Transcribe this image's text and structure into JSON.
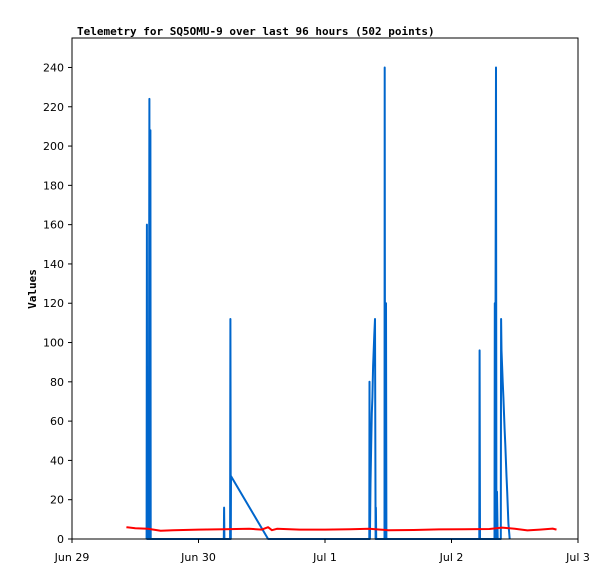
{
  "chart_data": {
    "type": "line",
    "title": "Telemetry for SQ5OMU-9 over last 96 hours (502 points)",
    "xlabel": "",
    "ylabel": "Values",
    "ylim": [
      0,
      255
    ],
    "xlim": [
      0,
      4
    ],
    "grid": false,
    "legend": "none",
    "x_ticks": [
      {
        "x": 0,
        "label": "Jun 29"
      },
      {
        "x": 1,
        "label": "Jun 30"
      },
      {
        "x": 2,
        "label": "Jul 1"
      },
      {
        "x": 3,
        "label": "Jul 2"
      },
      {
        "x": 4,
        "label": "Jul 3"
      }
    ],
    "y_ticks": [
      0,
      20,
      40,
      60,
      80,
      100,
      120,
      140,
      160,
      180,
      200,
      220,
      240
    ],
    "x_unit": "days since Jun 29 00:00",
    "series": [
      {
        "color": "#0066cc",
        "points": [
          [
            0.59,
            0
          ],
          [
            0.592,
            160
          ],
          [
            0.594,
            0
          ],
          [
            0.598,
            48
          ],
          [
            0.6,
            0
          ],
          [
            0.605,
            16
          ],
          [
            0.607,
            0
          ],
          [
            0.612,
            224
          ],
          [
            0.614,
            0
          ],
          [
            0.62,
            208
          ],
          [
            0.622,
            0
          ],
          [
            1.2,
            0
          ],
          [
            1.202,
            16
          ],
          [
            1.205,
            0
          ],
          [
            1.25,
            0
          ],
          [
            1.252,
            112
          ],
          [
            1.255,
            0
          ],
          [
            1.257,
            32
          ],
          [
            1.55,
            0
          ],
          [
            2.35,
            0
          ],
          [
            2.352,
            80
          ],
          [
            2.355,
            0
          ],
          [
            2.36,
            28
          ],
          [
            2.365,
            48
          ],
          [
            2.37,
            64
          ],
          [
            2.375,
            72
          ],
          [
            2.38,
            88
          ],
          [
            2.385,
            96
          ],
          [
            2.39,
            104
          ],
          [
            2.395,
            112
          ],
          [
            2.4,
            0
          ],
          [
            2.402,
            16
          ],
          [
            2.405,
            0
          ],
          [
            2.47,
            0
          ],
          [
            2.472,
            240
          ],
          [
            2.475,
            0
          ],
          [
            2.482,
            120
          ],
          [
            2.485,
            0
          ],
          [
            3.22,
            0
          ],
          [
            3.222,
            96
          ],
          [
            3.225,
            0
          ],
          [
            3.34,
            0
          ],
          [
            3.342,
            120
          ],
          [
            3.345,
            0
          ],
          [
            3.352,
            240
          ],
          [
            3.355,
            0
          ],
          [
            3.36,
            24
          ],
          [
            3.365,
            0
          ],
          [
            3.39,
            0
          ],
          [
            3.392,
            112
          ],
          [
            3.395,
            96
          ],
          [
            3.4,
            88
          ],
          [
            3.405,
            80
          ],
          [
            3.41,
            72
          ],
          [
            3.415,
            64
          ],
          [
            3.42,
            56
          ],
          [
            3.425,
            48
          ],
          [
            3.43,
            40
          ],
          [
            3.435,
            32
          ],
          [
            3.44,
            24
          ],
          [
            3.445,
            16
          ],
          [
            3.45,
            8
          ],
          [
            3.46,
            0
          ]
        ]
      },
      {
        "color": "#ff0000",
        "points": [
          [
            0.43,
            6
          ],
          [
            0.5,
            5.5
          ],
          [
            0.6,
            5.2
          ],
          [
            0.7,
            4.2
          ],
          [
            0.8,
            4.5
          ],
          [
            1.0,
            4.8
          ],
          [
            1.2,
            5.0
          ],
          [
            1.4,
            5.2
          ],
          [
            1.5,
            4.8
          ],
          [
            1.55,
            6
          ],
          [
            1.58,
            4.5
          ],
          [
            1.62,
            5.2
          ],
          [
            1.8,
            4.8
          ],
          [
            2.0,
            4.8
          ],
          [
            2.2,
            5.0
          ],
          [
            2.35,
            5.2
          ],
          [
            2.5,
            4.5
          ],
          [
            2.7,
            4.6
          ],
          [
            2.9,
            4.9
          ],
          [
            3.1,
            5.0
          ],
          [
            3.3,
            5.1
          ],
          [
            3.4,
            5.8
          ],
          [
            3.5,
            5.2
          ],
          [
            3.6,
            4.4
          ],
          [
            3.7,
            4.8
          ],
          [
            3.8,
            5.3
          ],
          [
            3.83,
            4.8
          ]
        ]
      },
      {
        "color": "#000000",
        "points": [
          [
            0.43,
            0
          ],
          [
            3.83,
            0
          ]
        ]
      }
    ]
  }
}
